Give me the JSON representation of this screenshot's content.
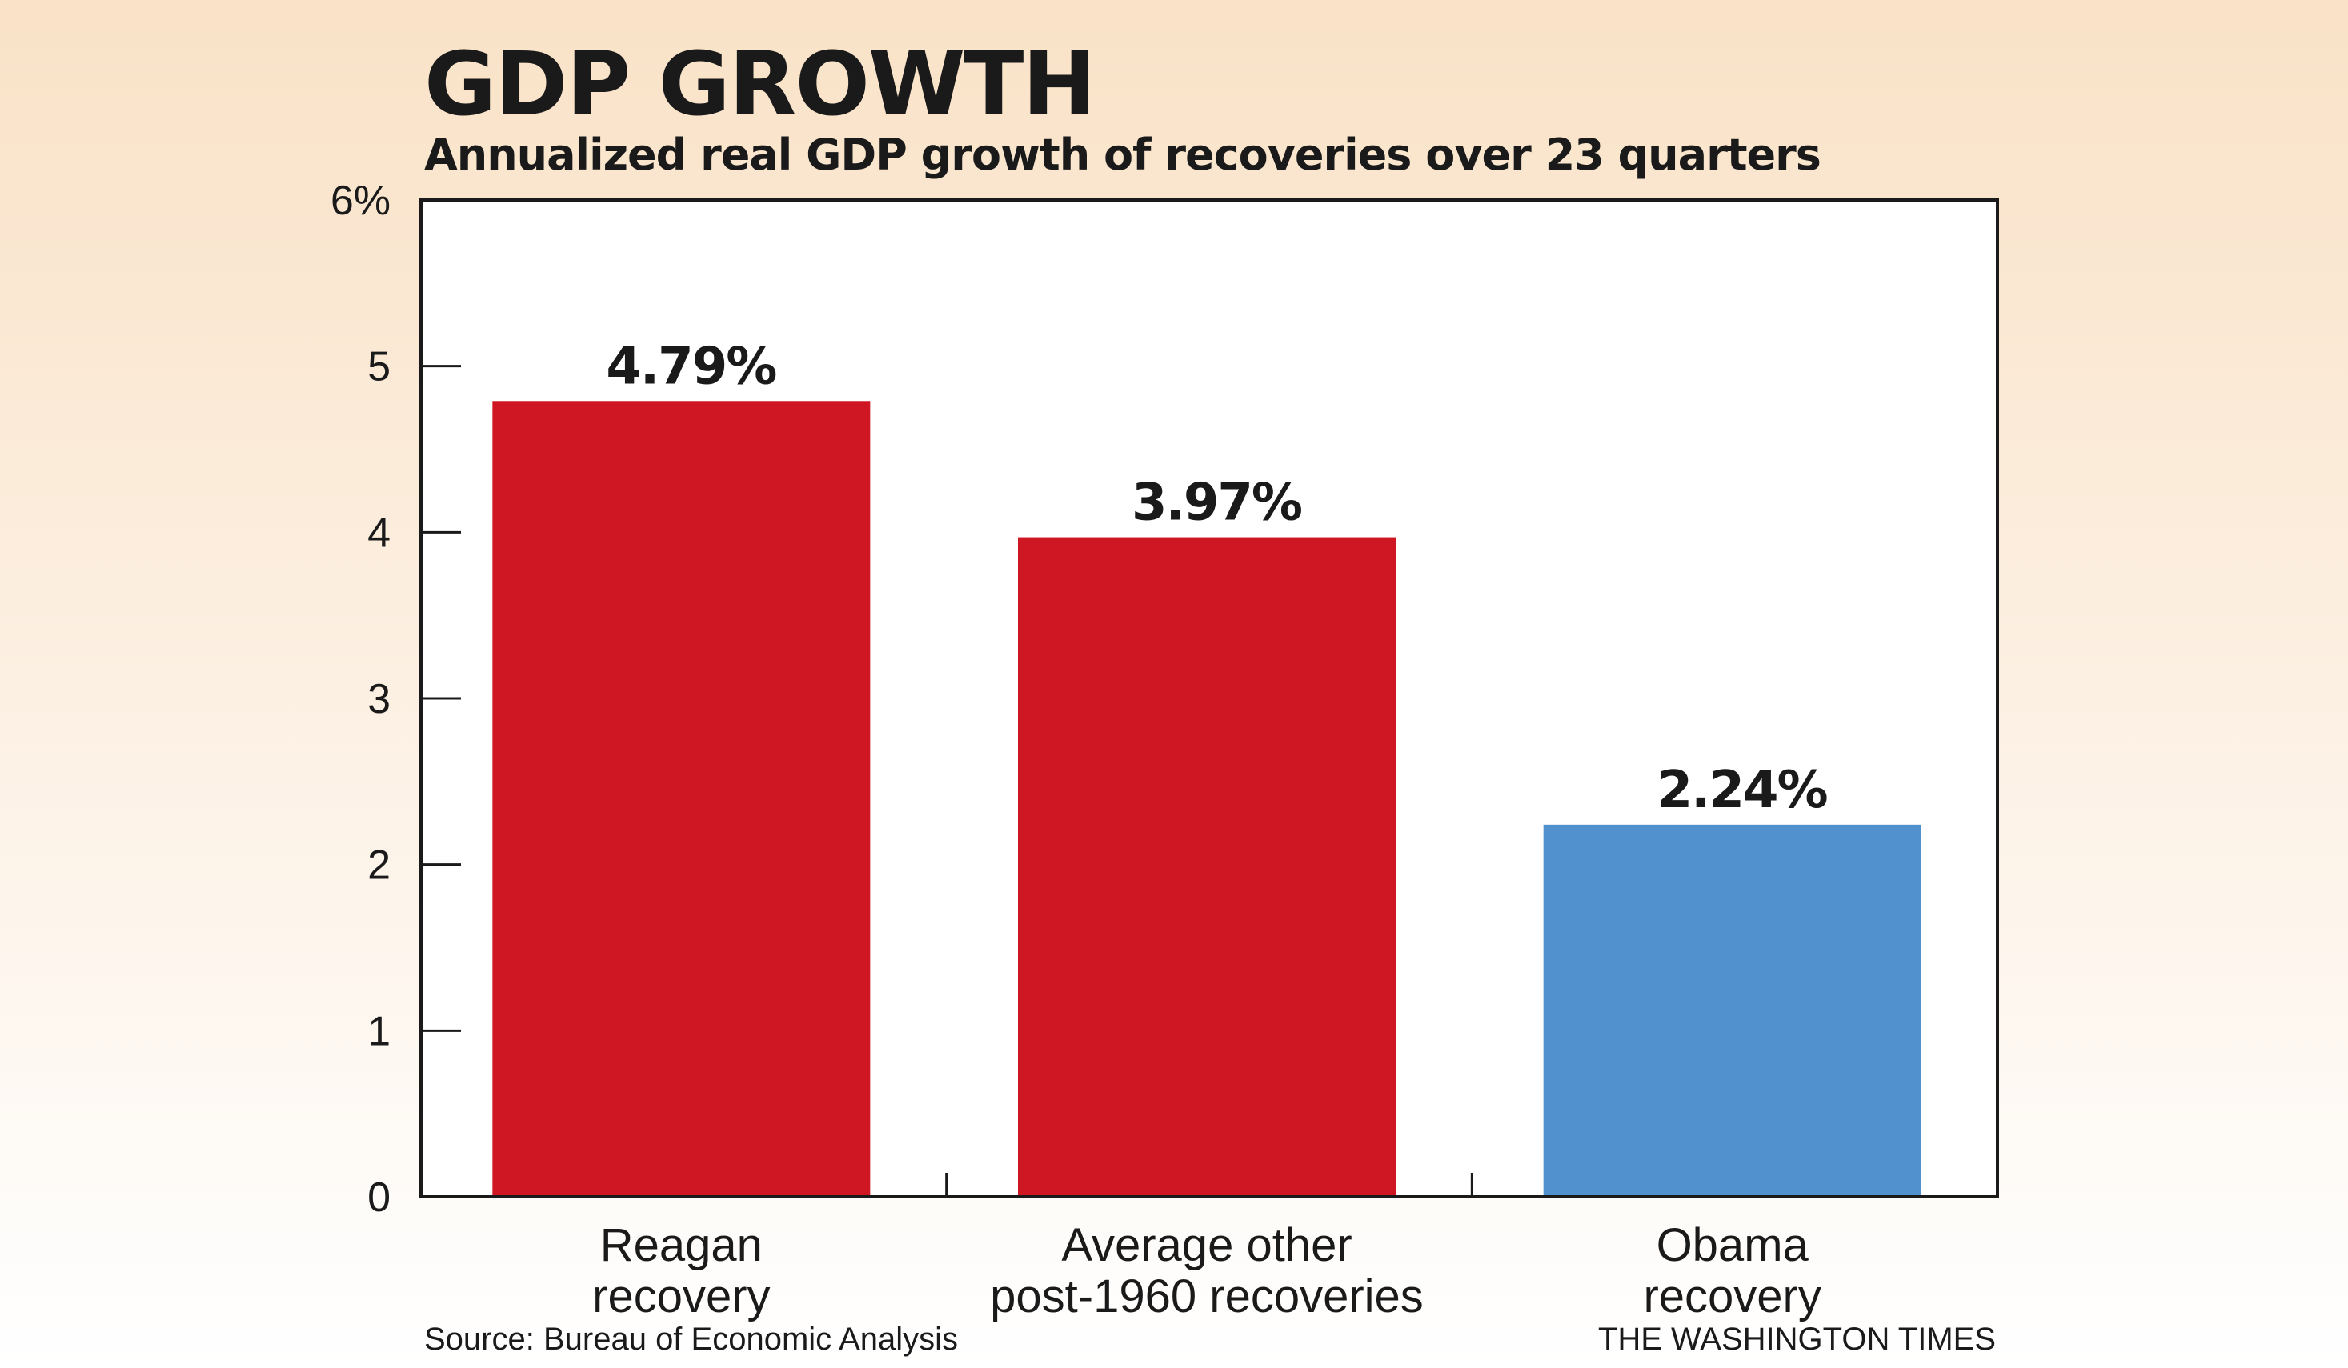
{
  "chart_data": {
    "type": "bar",
    "title": "GDP GROWTH",
    "subtitle": "Annualized real GDP growth of recoveries over 23 quarters",
    "categories": [
      [
        "Reagan",
        "recovery"
      ],
      [
        "Average other",
        "post-1960 recoveries"
      ],
      [
        "Obama",
        "recovery"
      ]
    ],
    "values": [
      4.79,
      3.97,
      2.24
    ],
    "data_labels": [
      "4.79%",
      "3.97%",
      "2.24%"
    ],
    "colors": [
      "#cf1623",
      "#cf1623",
      "#5192ce"
    ],
    "ylim": [
      0,
      6
    ],
    "yticks": [
      0,
      1,
      2,
      3,
      4,
      5,
      6
    ],
    "ytick_labels": [
      "0",
      "1",
      "2",
      "3",
      "4",
      "5",
      "6%"
    ],
    "grid": false,
    "legend": "none"
  },
  "footer": {
    "source": "Source: Bureau of Economic Analysis",
    "credit": "THE WASHINGTON TIMES"
  }
}
